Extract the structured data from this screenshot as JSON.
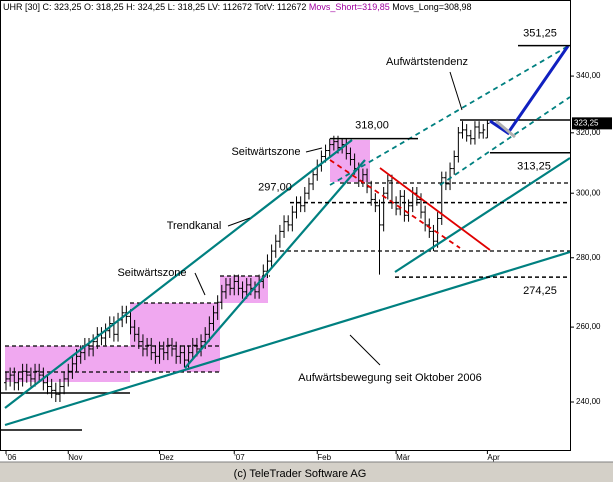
{
  "chart_data": {
    "type": "ohlc",
    "header": "UHR [30] C: 323,25 O: 318,25 H: 324,25 L: 318,25 LV: 112672 TotV: 112672",
    "movs_short": "Movs_Short=319,85",
    "movs_long": "Movs_Long=308,98",
    "footer": "(c) TeleTrader Software AG",
    "color": "#000000",
    "log_scale": true,
    "ylim": [
      228,
      368.8
    ],
    "yticks": [
      {
        "value": 240,
        "label": "240,00"
      },
      {
        "value": 260,
        "label": "260,00"
      },
      {
        "value": 280,
        "label": "280,00"
      },
      {
        "value": 300,
        "label": "300,00"
      },
      {
        "value": 320,
        "label": "320,00"
      },
      {
        "value": 340,
        "label": "340,00"
      }
    ],
    "last_price": {
      "value": 323.25,
      "label": "323,25"
    },
    "categories": [
      "'06",
      null,
      null,
      null,
      null,
      null,
      null,
      null,
      null,
      null,
      null,
      null,
      null,
      null,
      null,
      "Nov",
      null,
      null,
      null,
      null,
      null,
      null,
      null,
      null,
      null,
      null,
      null,
      null,
      null,
      null,
      null,
      null,
      null,
      null,
      null,
      null,
      null,
      "Dez",
      null,
      null,
      null,
      null,
      null,
      null,
      null,
      null,
      null,
      null,
      null,
      null,
      null,
      null,
      null,
      null,
      null,
      "'07",
      null,
      null,
      null,
      null,
      null,
      null,
      null,
      null,
      null,
      null,
      null,
      null,
      null,
      null,
      null,
      null,
      null,
      null,
      null,
      "Feb",
      null,
      null,
      null,
      null,
      null,
      null,
      null,
      null,
      null,
      null,
      null,
      null,
      null,
      null,
      null,
      null,
      null,
      null,
      "Mär",
      null,
      null,
      null,
      null,
      null,
      null,
      null,
      null,
      null,
      null,
      null,
      null,
      null,
      null,
      null,
      null,
      null,
      null,
      null,
      null,
      null,
      "Apr"
    ],
    "open": [
      245,
      246,
      247,
      245,
      246,
      248,
      247,
      246,
      248,
      247,
      245,
      244,
      243,
      242,
      244,
      246,
      248,
      250,
      252,
      253,
      255,
      254,
      256,
      258,
      257,
      259,
      261,
      258,
      262,
      264,
      263,
      260,
      258,
      256,
      254,
      255,
      253,
      252,
      254,
      253,
      255,
      254,
      252,
      253,
      251,
      253,
      255,
      254,
      256,
      258,
      261,
      264,
      267,
      270,
      272,
      271,
      273,
      271,
      270,
      272,
      271,
      270,
      273,
      276,
      279,
      282,
      285,
      288,
      291,
      290,
      294,
      297,
      296,
      300,
      303,
      306,
      309,
      312,
      314,
      316,
      317,
      315,
      316,
      313,
      311,
      308,
      304,
      306,
      302,
      298,
      296,
      290,
      300,
      304,
      297,
      295,
      299,
      293,
      296,
      300,
      298,
      294,
      290,
      288,
      285,
      292,
      305,
      303,
      308,
      312,
      320,
      321,
      319,
      318,
      322,
      320,
      318.25
    ],
    "high": [
      248,
      249,
      249,
      248,
      250,
      250,
      249,
      250,
      250,
      249,
      247,
      246,
      245,
      246,
      248,
      250,
      252,
      254,
      255,
      257,
      257,
      258,
      260,
      260,
      261,
      263,
      263,
      264,
      266,
      266,
      265,
      262,
      260,
      258,
      257,
      257,
      255,
      256,
      256,
      257,
      257,
      256,
      255,
      255,
      255,
      257,
      257,
      258,
      260,
      263,
      266,
      269,
      272,
      274,
      274,
      275,
      275,
      273,
      274,
      274,
      273,
      275,
      278,
      281,
      284,
      287,
      290,
      293,
      293,
      296,
      299,
      299,
      302,
      305,
      308,
      311,
      314,
      316,
      318,
      319,
      319,
      318,
      318,
      315,
      313,
      310,
      308,
      308,
      304,
      300,
      298,
      302,
      306,
      306,
      299,
      301,
      301,
      298,
      302,
      302,
      300,
      296,
      292,
      290,
      294,
      307,
      307,
      310,
      314,
      322,
      324,
      323,
      321,
      324,
      324,
      323,
      324.25
    ],
    "low": [
      243,
      244,
      243,
      243,
      244,
      245,
      244,
      244,
      245,
      243,
      242,
      241,
      240,
      240,
      242,
      244,
      246,
      248,
      250,
      251,
      252,
      252,
      254,
      255,
      255,
      257,
      256,
      256,
      260,
      261,
      258,
      256,
      254,
      252,
      252,
      251,
      250,
      250,
      251,
      251,
      252,
      250,
      250,
      249,
      249,
      251,
      252,
      252,
      254,
      256,
      259,
      262,
      265,
      268,
      269,
      269,
      269,
      268,
      268,
      269,
      268,
      268,
      271,
      274,
      277,
      280,
      283,
      286,
      288,
      288,
      292,
      294,
      294,
      298,
      301,
      304,
      307,
      310,
      312,
      314,
      313,
      313,
      311,
      309,
      306,
      302,
      302,
      300,
      296,
      294,
      275,
      288,
      298,
      295,
      293,
      293,
      291,
      291,
      294,
      296,
      292,
      288,
      286,
      282,
      283,
      290,
      301,
      301,
      306,
      310,
      318,
      317,
      316,
      316,
      318,
      318,
      318.25
    ],
    "close": [
      246,
      247,
      245,
      246,
      248,
      247,
      246,
      248,
      247,
      245,
      244,
      243,
      242,
      244,
      246,
      248,
      250,
      252,
      253,
      255,
      254,
      256,
      258,
      257,
      259,
      261,
      258,
      262,
      264,
      263,
      260,
      258,
      256,
      254,
      255,
      253,
      252,
      254,
      253,
      255,
      254,
      252,
      253,
      251,
      253,
      255,
      254,
      256,
      258,
      261,
      264,
      267,
      270,
      272,
      271,
      273,
      271,
      270,
      272,
      271,
      270,
      273,
      276,
      279,
      282,
      285,
      288,
      291,
      290,
      294,
      297,
      296,
      300,
      303,
      306,
      309,
      312,
      314,
      316,
      317,
      315,
      316,
      313,
      311,
      308,
      304,
      306,
      302,
      298,
      296,
      290,
      300,
      304,
      297,
      295,
      299,
      293,
      296,
      300,
      298,
      294,
      290,
      288,
      285,
      292,
      305,
      303,
      308,
      312,
      320,
      321,
      319,
      318,
      322,
      320,
      321,
      323.25
    ],
    "levels": [
      {
        "value": 351.25,
        "label": "351,25"
      },
      {
        "value": 318,
        "label": "318,00"
      },
      {
        "value": 297,
        "label": "297,00"
      },
      {
        "value": 313.25,
        "label": "313,25"
      },
      {
        "value": 274.25,
        "label": "274,25"
      }
    ],
    "annotations": [
      "Aufwärtstendenz",
      "Seitwärtszone",
      "Trendkanal",
      "Seitwärtszone",
      "Aufwärtsbewegung seit Oktober 2006"
    ]
  }
}
